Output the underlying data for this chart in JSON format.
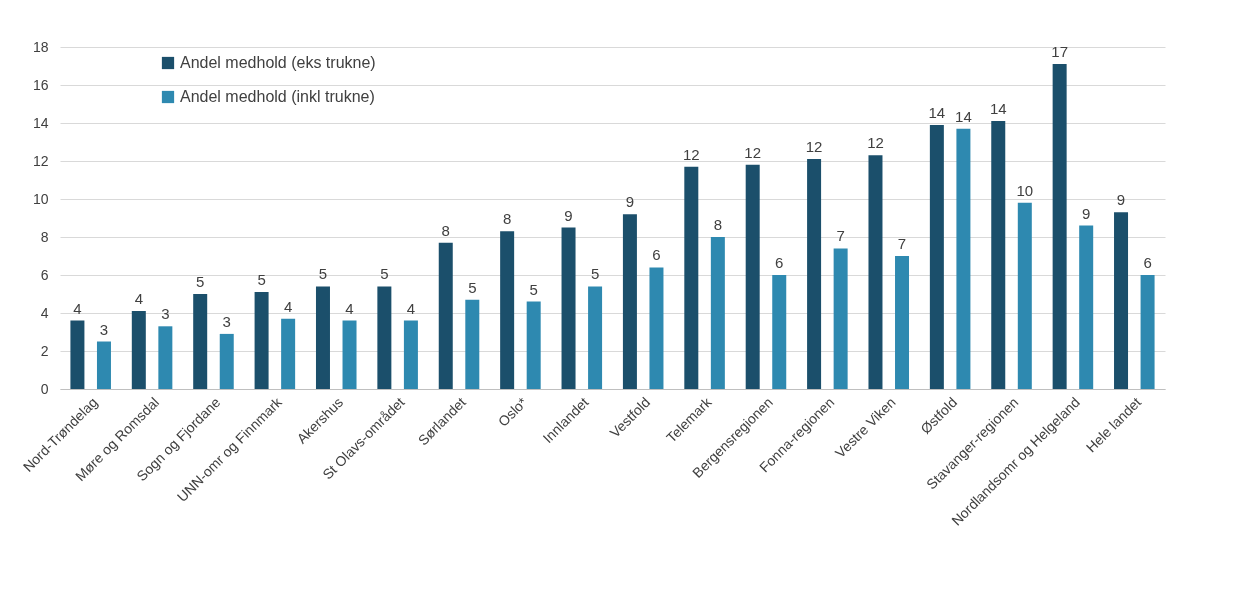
{
  "chart_data": {
    "type": "bar",
    "categories": [
      "Nord-Trøndelag",
      "Møre og Romsdal",
      "Sogn og Fjordane",
      "UNN-omr og Finnmark",
      "Akershus",
      "St Olavs-området",
      "Sørlandet",
      "Oslo*",
      "Innlandet",
      "Vestfold",
      "Telemark",
      "Bergensregionen",
      "Fonna-regionen",
      "Vestre Viken",
      "Østfold",
      "Stavanger-regionen",
      "Nordlandsomr og Helgeland",
      "Hele landet"
    ],
    "series": [
      {
        "name": "Andel medhold (eks trukne)",
        "color": "#1b4f6b",
        "values": [
          3.6,
          4.1,
          5.0,
          5.1,
          5.4,
          5.4,
          7.7,
          8.3,
          8.5,
          9.2,
          11.7,
          11.8,
          12.1,
          12.3,
          13.9,
          14.1,
          17.1,
          9.3
        ],
        "value_labels": [
          "4",
          "4",
          "5",
          "5",
          "5",
          "5",
          "8",
          "8",
          "9",
          "9",
          "12",
          "12",
          "12",
          "12",
          "14",
          "14",
          "17",
          "9"
        ]
      },
      {
        "name": "Andel medhold (inkl trukne)",
        "color": "#2e89b0",
        "values": [
          2.5,
          3.3,
          2.9,
          3.7,
          3.6,
          3.6,
          4.7,
          4.6,
          5.4,
          6.4,
          8.0,
          6.0,
          7.4,
          7.0,
          13.7,
          9.8,
          8.6,
          6.0
        ],
        "value_labels": [
          "3",
          "3",
          "3",
          "4",
          "4",
          "4",
          "5",
          "5",
          "5",
          "6",
          "8",
          "6",
          "7",
          "7",
          "14",
          "10",
          "9",
          "6"
        ]
      }
    ],
    "ylim": [
      0,
      18
    ],
    "yticks": [
      0,
      2,
      4,
      6,
      8,
      10,
      12,
      14,
      16,
      18
    ],
    "grid": "y",
    "legend": "top left"
  }
}
